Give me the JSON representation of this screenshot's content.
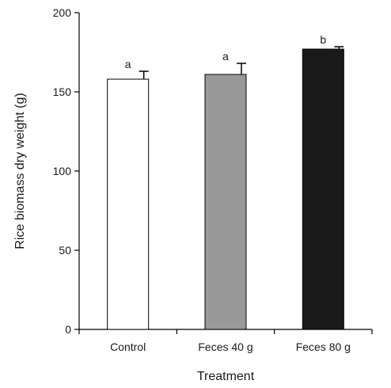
{
  "chart_data": {
    "type": "bar",
    "title": "",
    "xlabel": "Treatment",
    "ylabel": "Rice biomass dry weight (g)",
    "ylim": [
      0,
      200
    ],
    "yticks": [
      0,
      50,
      100,
      150,
      200
    ],
    "categories": [
      "Control",
      "Feces 40 g",
      "Feces 80 g"
    ],
    "values": [
      158,
      161,
      177
    ],
    "errors": [
      5,
      7,
      1.5
    ],
    "significance_labels": [
      "a",
      "a",
      "b"
    ],
    "bar_colors": [
      "#ffffff",
      "#999999",
      "#1a1a1a"
    ],
    "grid": false,
    "legend": "none"
  }
}
